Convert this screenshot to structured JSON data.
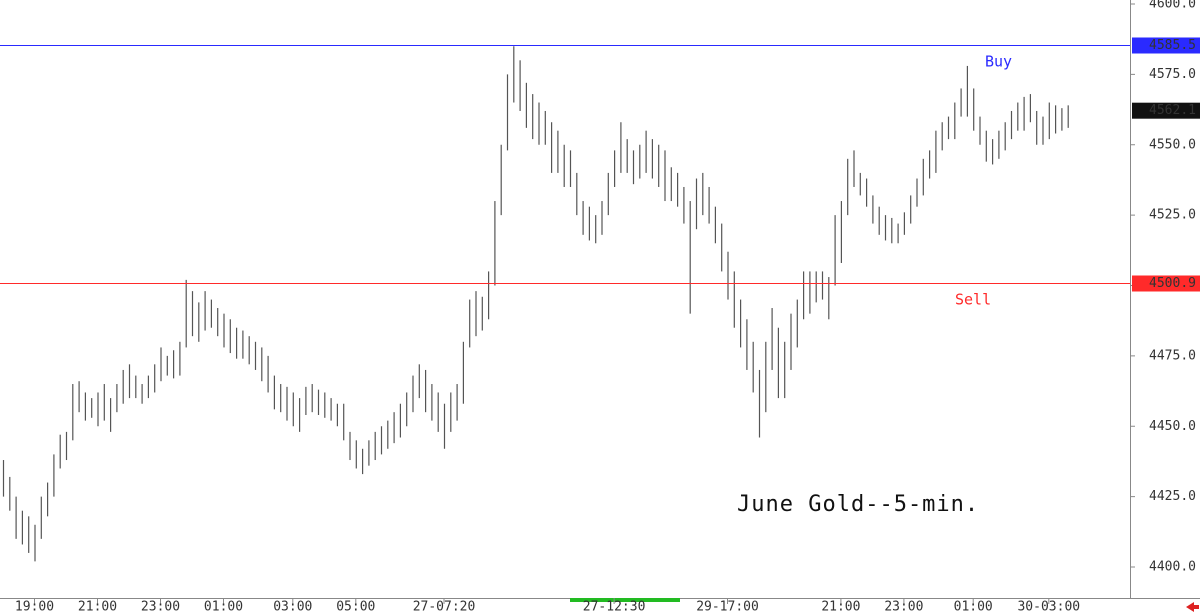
{
  "chart_data": {
    "type": "range-bars",
    "annotation": "June Gold--5-min.",
    "ylim": [
      4400,
      4600
    ],
    "yticks": [
      {
        "value": 4400,
        "label": "4400.0"
      },
      {
        "value": 4425,
        "label": "4425.0"
      },
      {
        "value": 4450,
        "label": "4450.0"
      },
      {
        "value": 4475,
        "label": "4475.0"
      },
      {
        "value": 4500,
        "label": "4500.0"
      },
      {
        "value": 4525,
        "label": "4525.0"
      },
      {
        "value": 4550,
        "label": "4550.0"
      },
      {
        "value": 4575,
        "label": "4575.0"
      },
      {
        "value": 4600,
        "label": "4600.0"
      }
    ],
    "xticks": [
      {
        "value": 5,
        "label": "19:00"
      },
      {
        "value": 15,
        "label": "21:00"
      },
      {
        "value": 25,
        "label": "23:00"
      },
      {
        "value": 35,
        "label": "01:00"
      },
      {
        "value": 46,
        "label": "03:00"
      },
      {
        "value": 56,
        "label": "05:00"
      },
      {
        "value": 70,
        "label": "27-07:20"
      },
      {
        "value": 97,
        "label": "27-12:30"
      },
      {
        "value": 115,
        "label": "29-17:00"
      },
      {
        "value": 133,
        "label": "21:00"
      },
      {
        "value": 143,
        "label": "23:00"
      },
      {
        "value": 154,
        "label": "01:00"
      },
      {
        "value": 166,
        "label": "30-03:00"
      }
    ],
    "color": "#555555",
    "high": [
      4438,
      4432,
      4425,
      4420,
      4418,
      4415,
      4425,
      4430,
      4440,
      4447,
      4448,
      4465,
      4466,
      4462,
      4460,
      4462,
      4465,
      4460,
      4465,
      4470,
      4472,
      4468,
      4465,
      4468,
      4472,
      4478,
      4475,
      4477,
      4480,
      4502,
      4498,
      4494,
      4498,
      4495,
      4492,
      4490,
      4488,
      4485,
      4484,
      4482,
      4480,
      4478,
      4475,
      4468,
      4465,
      4464,
      4462,
      4460,
      4464,
      4465,
      4463,
      4462,
      4460,
      4458,
      4458,
      4448,
      4445,
      4442,
      4445,
      4448,
      4450,
      4452,
      4455,
      4458,
      4462,
      4468,
      4472,
      4470,
      4465,
      4462,
      4458,
      4462,
      4465,
      4480,
      4495,
      4498,
      4496,
      4505,
      4530,
      4550,
      4575,
      4585,
      4580,
      4572,
      4568,
      4565,
      4562,
      4558,
      4555,
      4550,
      4548,
      4540,
      4530,
      4528,
      4525,
      4530,
      4540,
      4548,
      4558,
      4552,
      4548,
      4550,
      4555,
      4552,
      4550,
      4548,
      4542,
      4540,
      4535,
      4530,
      4538,
      4540,
      4535,
      4528,
      4522,
      4512,
      4505,
      4495,
      4488,
      4480,
      4470,
      4480,
      4492,
      4485,
      4480,
      4490,
      4495,
      4505,
      4505,
      4505,
      4505,
      4503,
      4525,
      4530,
      4545,
      4548,
      4540,
      4538,
      4532,
      4528,
      4525,
      4524,
      4522,
      4526,
      4532,
      4538,
      4545,
      4548,
      4555,
      4558,
      4560,
      4565,
      4570,
      4578,
      4570,
      4560,
      4555,
      4552,
      4555,
      4558,
      4562,
      4565,
      4567,
      4568,
      4562,
      4560,
      4565,
      4564,
      4563,
      4564
    ],
    "low": [
      4425,
      4420,
      4410,
      4408,
      4405,
      4402,
      4410,
      4418,
      4425,
      4435,
      4438,
      4445,
      4455,
      4452,
      4453,
      4450,
      4452,
      4448,
      4455,
      4458,
      4460,
      4460,
      4458,
      4460,
      4462,
      4466,
      4468,
      4467,
      4468,
      4478,
      4482,
      4480,
      4484,
      4485,
      4482,
      4478,
      4476,
      4474,
      4474,
      4472,
      4470,
      4466,
      4462,
      4456,
      4455,
      4452,
      4450,
      4448,
      4454,
      4455,
      4454,
      4453,
      4452,
      4450,
      4445,
      4438,
      4435,
      4433,
      4436,
      4438,
      4440,
      4442,
      4444,
      4446,
      4450,
      4455,
      4460,
      4455,
      4452,
      4448,
      4442,
      4448,
      4452,
      4458,
      4478,
      4482,
      4484,
      4488,
      4500,
      4525,
      4548,
      4565,
      4562,
      4556,
      4552,
      4550,
      4550,
      4540,
      4540,
      4535,
      4535,
      4525,
      4518,
      4516,
      4515,
      4518,
      4525,
      4535,
      4540,
      4540,
      4536,
      4538,
      4540,
      4538,
      4535,
      4530,
      4530,
      4528,
      4522,
      4490,
      4520,
      4525,
      4522,
      4515,
      4505,
      4495,
      4485,
      4478,
      4470,
      4462,
      4446,
      4455,
      4470,
      4460,
      4460,
      4470,
      4478,
      4488,
      4490,
      4494,
      4495,
      4488,
      4500,
      4508,
      4525,
      4535,
      4532,
      4528,
      4522,
      4518,
      4516,
      4515,
      4515,
      4518,
      4522,
      4528,
      4532,
      4538,
      4540,
      4548,
      4552,
      4552,
      4560,
      4560,
      4555,
      4550,
      4544,
      4543,
      4545,
      4548,
      4552,
      4555,
      4555,
      4558,
      4550,
      4550,
      4552,
      4554,
      4555,
      4556
    ],
    "levels": [
      {
        "name": "Buy",
        "value": 4585.5,
        "color": "#2a2aff"
      },
      {
        "name": "Sell",
        "value": 4500.9,
        "color": "#ff2a2a"
      }
    ],
    "last": 4562.1
  }
}
